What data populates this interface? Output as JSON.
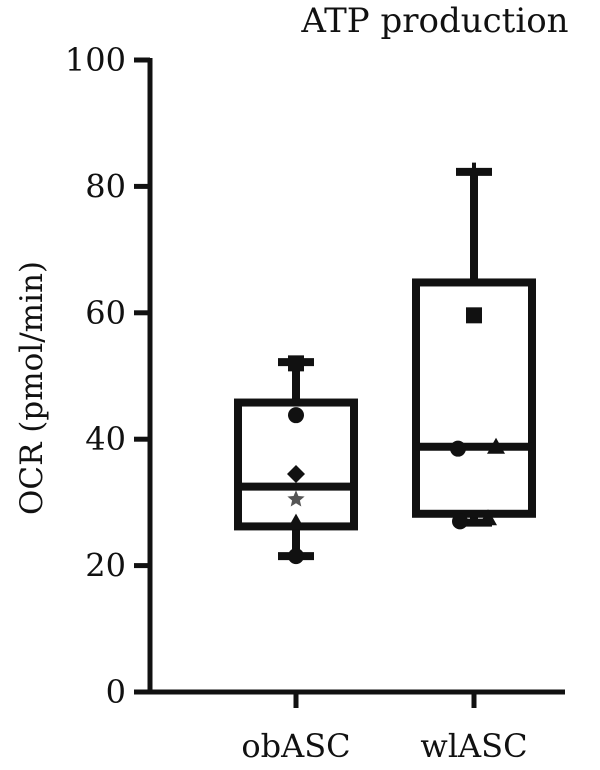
{
  "chart_data": {
    "type": "box",
    "title": "ATP production",
    "xlabel": "",
    "ylabel": "OCR (pmol/min)",
    "ylim": [
      0,
      100
    ],
    "yticks": [
      0,
      20,
      40,
      60,
      80,
      100
    ],
    "grid": false,
    "categories": [
      "obASC",
      "wlASC"
    ],
    "boxes": [
      {
        "category": "obASC",
        "min": 21.5,
        "q1": 26.2,
        "median": 32.5,
        "q3": 45.8,
        "max": 52.2,
        "points": [
          {
            "shape": "square",
            "y": 52.0
          },
          {
            "shape": "circle",
            "y": 43.8
          },
          {
            "shape": "diamond",
            "y": 34.5
          },
          {
            "shape": "star",
            "y": 30.5
          },
          {
            "shape": "triangle",
            "y": 26.8
          },
          {
            "shape": "circle",
            "y": 21.5
          }
        ]
      },
      {
        "category": "wlASC",
        "min": 26.8,
        "q1": 28.2,
        "median": 38.8,
        "q3": 64.8,
        "max": 82.3,
        "points": [
          {
            "shape": "plus",
            "y": 82.5
          },
          {
            "shape": "square",
            "y": 59.6
          },
          {
            "shape": "circle",
            "y": 38.5
          },
          {
            "shape": "triangle",
            "y": 38.8
          },
          {
            "shape": "circle",
            "y": 27.0
          },
          {
            "shape": "triangle",
            "y": 27.5
          }
        ]
      }
    ]
  }
}
